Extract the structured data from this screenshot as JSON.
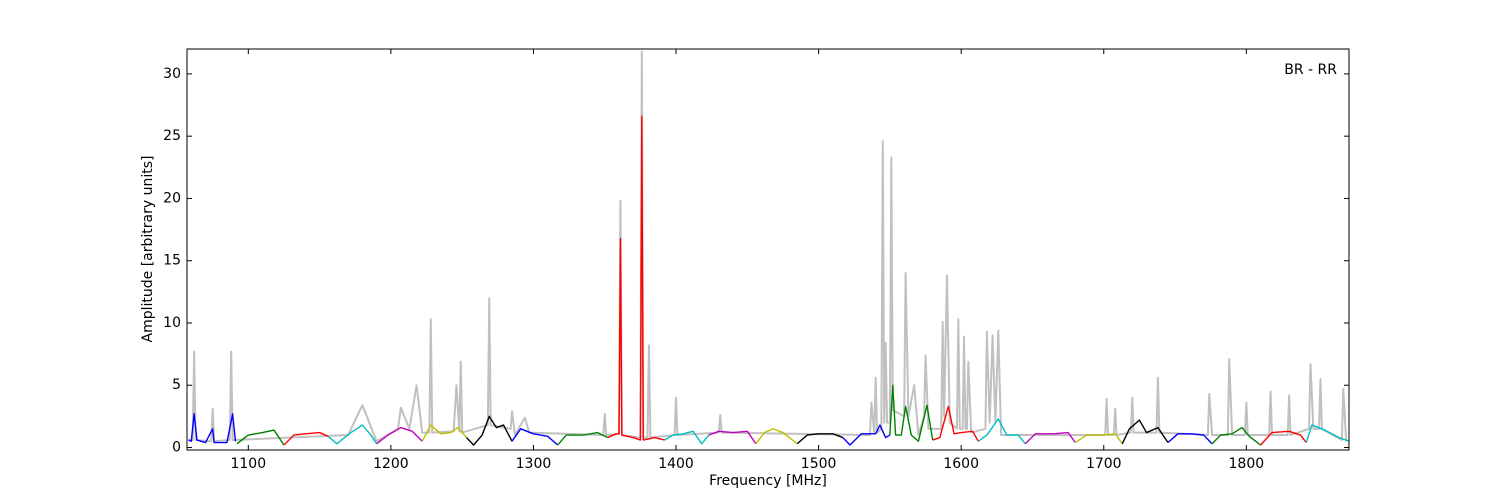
{
  "chart_data": {
    "type": "line",
    "xlabel": "Frequency [MHz]",
    "ylabel": "Amplitude [arbitrary units]",
    "annotation": "BR - RR",
    "xlim": [
      1057,
      1872
    ],
    "ylim": [
      -0.2,
      32
    ],
    "xticks": [
      1100,
      1200,
      1300,
      1400,
      1500,
      1600,
      1700,
      1800
    ],
    "yticks": [
      0,
      5,
      10,
      15,
      20,
      25,
      30
    ],
    "series": [
      {
        "color": "#c0c0c0",
        "x": [
          1058,
          1061,
          1062,
          1063,
          1074,
          1075,
          1076,
          1087,
          1088,
          1089,
          1170,
          1180,
          1190,
          1205,
          1207,
          1213,
          1218,
          1222,
          1227,
          1228,
          1229,
          1244,
          1246,
          1248,
          1249,
          1250,
          1268,
          1269,
          1270,
          1284,
          1285,
          1287,
          1294,
          1297,
          1349,
          1350,
          1351,
          1360,
          1361,
          1362,
          1375,
          1376,
          1377,
          1380,
          1381,
          1382,
          1399,
          1400,
          1401,
          1430,
          1431,
          1432,
          1536,
          1537,
          1539,
          1540,
          1541,
          1544,
          1545,
          1546,
          1547,
          1548,
          1550,
          1551,
          1552,
          1560,
          1561,
          1563,
          1567,
          1570,
          1574,
          1575,
          1577,
          1586,
          1587,
          1588,
          1590,
          1592,
          1597,
          1598,
          1599,
          1601,
          1602,
          1603,
          1604,
          1605,
          1607,
          1617,
          1618,
          1620,
          1622,
          1624,
          1626,
          1628,
          1701,
          1702,
          1703,
          1707,
          1708,
          1709,
          1719,
          1720,
          1721,
          1737,
          1738,
          1739,
          1773,
          1774,
          1776,
          1787,
          1788,
          1790,
          1799,
          1800,
          1801,
          1816,
          1817,
          1818,
          1829,
          1830,
          1831,
          1844,
          1845,
          1847,
          1851,
          1852,
          1853,
          1867,
          1868,
          1870
        ],
        "values": [
          0.6,
          0.6,
          7.7,
          0.6,
          0.5,
          3.1,
          0.5,
          0.6,
          7.7,
          0.6,
          1.0,
          3.4,
          0.5,
          1.5,
          3.2,
          1.5,
          5.0,
          1.2,
          1.2,
          10.3,
          1.2,
          1.3,
          5.0,
          1.3,
          6.9,
          1.2,
          1.8,
          12.0,
          1.8,
          1.5,
          2.9,
          1.0,
          2.4,
          1.2,
          1.0,
          2.7,
          1.0,
          1.1,
          19.8,
          1.0,
          0.8,
          31.8,
          0.8,
          0.8,
          8.2,
          0.8,
          1.0,
          4.0,
          1.0,
          1.2,
          2.6,
          1.2,
          1.0,
          3.6,
          1.2,
          5.6,
          1.2,
          1.5,
          24.6,
          2.0,
          8.4,
          2.0,
          2.0,
          23.3,
          3.0,
          2.5,
          14.0,
          2.5,
          5.0,
          1.0,
          2.5,
          7.4,
          1.5,
          1.5,
          10.1,
          2.5,
          13.8,
          2.0,
          1.5,
          10.3,
          1.5,
          1.5,
          8.9,
          1.5,
          1.5,
          6.9,
          1.2,
          1.5,
          9.3,
          2.0,
          9.0,
          2.0,
          9.4,
          1.0,
          1.0,
          3.9,
          1.0,
          1.0,
          3.1,
          1.0,
          1.2,
          4.0,
          1.2,
          1.2,
          5.6,
          1.2,
          1.0,
          4.3,
          1.0,
          1.0,
          7.1,
          1.0,
          1.0,
          3.6,
          1.0,
          1.0,
          4.5,
          1.0,
          1.0,
          4.2,
          1.0,
          1.5,
          6.7,
          1.5,
          1.5,
          5.5,
          1.5,
          0.6,
          4.7,
          0.5
        ]
      },
      {
        "color": "#0000ff",
        "x": [
          1058,
          1060,
          1062,
          1064,
          1070,
          1075,
          1076,
          1085,
          1089,
          1091
        ],
        "values": [
          0.6,
          0.5,
          2.7,
          0.6,
          0.4,
          1.5,
          0.4,
          0.4,
          2.7,
          0.5
        ]
      },
      {
        "color": "#008000",
        "x": [
          1092,
          1100,
          1110,
          1118,
          1125
        ],
        "values": [
          0.3,
          1.0,
          1.2,
          1.4,
          0.2
        ]
      },
      {
        "color": "#ff0000",
        "x": [
          1125,
          1132,
          1140,
          1150,
          1156
        ],
        "values": [
          0.2,
          1.0,
          1.1,
          1.2,
          0.9
        ]
      },
      {
        "color": "#00bfbf",
        "x": [
          1156,
          1162,
          1172,
          1180,
          1186,
          1190
        ],
        "values": [
          0.9,
          0.3,
          1.2,
          1.8,
          1.0,
          0.3
        ]
      },
      {
        "color": "#bf00bf",
        "x": [
          1190,
          1198,
          1207,
          1215,
          1222
        ],
        "values": [
          0.3,
          1.0,
          1.6,
          1.3,
          0.5
        ]
      },
      {
        "color": "#bfbf00",
        "x": [
          1222,
          1228,
          1235,
          1242,
          1247,
          1253
        ],
        "values": [
          0.5,
          1.8,
          1.1,
          1.2,
          1.6,
          0.8
        ]
      },
      {
        "color": "#000000",
        "x": [
          1253,
          1258,
          1264,
          1269,
          1274,
          1279,
          1285
        ],
        "values": [
          0.8,
          0.2,
          1.0,
          2.5,
          1.6,
          1.8,
          0.5
        ]
      },
      {
        "color": "#0000ff",
        "x": [
          1285,
          1291,
          1300,
          1310,
          1317
        ],
        "values": [
          0.5,
          1.5,
          1.1,
          0.9,
          0.2
        ]
      },
      {
        "color": "#008000",
        "x": [
          1317,
          1323,
          1335,
          1345,
          1352
        ],
        "values": [
          0.2,
          1.0,
          1.0,
          1.2,
          0.8
        ]
      },
      {
        "color": "#ff0000",
        "x": [
          1352,
          1358,
          1360,
          1361,
          1362,
          1370,
          1375,
          1376,
          1377,
          1385,
          1392
        ],
        "values": [
          0.8,
          1.1,
          1.1,
          16.8,
          1.0,
          0.8,
          0.6,
          26.6,
          0.6,
          0.8,
          0.6
        ]
      },
      {
        "color": "#00bfbf",
        "x": [
          1392,
          1398,
          1405,
          1412,
          1418,
          1423
        ],
        "values": [
          0.6,
          1.0,
          1.1,
          1.3,
          0.3,
          1.0
        ]
      },
      {
        "color": "#bf00bf",
        "x": [
          1423,
          1430,
          1440,
          1450,
          1456
        ],
        "values": [
          1.0,
          1.3,
          1.2,
          1.3,
          0.3
        ]
      },
      {
        "color": "#bfbf00",
        "x": [
          1456,
          1462,
          1468,
          1475,
          1485
        ],
        "values": [
          0.3,
          1.2,
          1.5,
          1.2,
          0.3
        ]
      },
      {
        "color": "#000000",
        "x": [
          1485,
          1492,
          1500,
          1510,
          1517
        ],
        "values": [
          0.3,
          1.0,
          1.1,
          1.1,
          0.8
        ]
      },
      {
        "color": "#0000ff",
        "x": [
          1517,
          1522,
          1530,
          1540,
          1543,
          1547,
          1550
        ],
        "values": [
          0.8,
          0.2,
          1.1,
          1.1,
          1.8,
          0.8,
          1.0
        ]
      },
      {
        "color": "#008000",
        "x": [
          1550,
          1552,
          1554,
          1558,
          1561,
          1565,
          1570,
          1576,
          1580
        ],
        "values": [
          1.0,
          5.0,
          1.0,
          1.0,
          3.3,
          1.0,
          0.5,
          3.4,
          0.6
        ]
      },
      {
        "color": "#ff0000",
        "x": [
          1580,
          1585,
          1591,
          1595,
          1600,
          1608,
          1612
        ],
        "values": [
          0.6,
          0.8,
          3.3,
          1.1,
          1.2,
          1.3,
          0.5
        ]
      },
      {
        "color": "#00bfbf",
        "x": [
          1612,
          1618,
          1626,
          1632,
          1640,
          1645
        ],
        "values": [
          0.5,
          1.0,
          2.3,
          1.0,
          1.0,
          0.3
        ]
      },
      {
        "color": "#bf00bf",
        "x": [
          1645,
          1652,
          1665,
          1675,
          1680
        ],
        "values": [
          0.3,
          1.1,
          1.1,
          1.2,
          0.4
        ]
      },
      {
        "color": "#bfbf00",
        "x": [
          1680,
          1688,
          1700,
          1708,
          1713
        ],
        "values": [
          0.4,
          1.0,
          1.0,
          1.1,
          0.3
        ]
      },
      {
        "color": "#000000",
        "x": [
          1713,
          1718,
          1725,
          1730,
          1738,
          1745
        ],
        "values": [
          0.3,
          1.5,
          2.2,
          1.2,
          1.6,
          0.4
        ]
      },
      {
        "color": "#0000ff",
        "x": [
          1745,
          1752,
          1762,
          1770,
          1776
        ],
        "values": [
          0.4,
          1.1,
          1.1,
          1.0,
          0.3
        ]
      },
      {
        "color": "#008000",
        "x": [
          1776,
          1782,
          1790,
          1797,
          1802,
          1810
        ],
        "values": [
          0.3,
          1.0,
          1.1,
          1.6,
          0.9,
          0.2
        ]
      },
      {
        "color": "#ff0000",
        "x": [
          1810,
          1818,
          1830,
          1838,
          1842
        ],
        "values": [
          0.2,
          1.2,
          1.3,
          1.0,
          0.4
        ]
      },
      {
        "color": "#00bfbf",
        "x": [
          1842,
          1846,
          1855,
          1865,
          1872
        ],
        "values": [
          0.4,
          1.8,
          1.4,
          0.8,
          0.5
        ]
      }
    ]
  }
}
